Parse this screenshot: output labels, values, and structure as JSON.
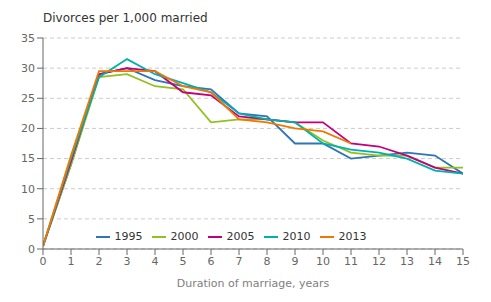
{
  "chart_data": {
    "type": "line",
    "title": "Divorces per 1,000 married",
    "xlabel": "Duration of marriage, years",
    "x": [
      0,
      1,
      2,
      3,
      4,
      5,
      6,
      7,
      8,
      9,
      10,
      11,
      12,
      13,
      14,
      15
    ],
    "series": [
      {
        "name": "1995",
        "color": "#2e75b6",
        "values": [
          0.5,
          14,
          29,
          30,
          28,
          27,
          26.5,
          22.5,
          22,
          17.5,
          17.5,
          15,
          15.5,
          16,
          15.5,
          12.5
        ]
      },
      {
        "name": "2000",
        "color": "#92c01f",
        "values": [
          0.5,
          14,
          28.5,
          29,
          27,
          26.5,
          21,
          21.5,
          21.5,
          21,
          18,
          16,
          15.5,
          15.5,
          13.5,
          13.5
        ]
      },
      {
        "name": "2005",
        "color": "#c2007a",
        "values": [
          0.5,
          14.5,
          29,
          30,
          29.5,
          26,
          25.5,
          22,
          21.5,
          21,
          21,
          17.5,
          17,
          15.5,
          13.5,
          12.5
        ]
      },
      {
        "name": "2010",
        "color": "#00b0b0",
        "values": [
          0.5,
          15,
          28.5,
          31.5,
          29,
          27.5,
          26,
          22.5,
          21.5,
          21,
          17.5,
          16.5,
          16,
          15,
          13,
          12.5
        ]
      },
      {
        "name": "2013",
        "color": "#f07800",
        "values": [
          0.5,
          15.5,
          29.5,
          29.5,
          29.5,
          27,
          26,
          21.5,
          21,
          20,
          19.5,
          17.5,
          null,
          null,
          null,
          null
        ]
      }
    ],
    "xlim": [
      0,
      15
    ],
    "ylim": [
      0,
      35
    ],
    "xticks": [
      0,
      1,
      2,
      3,
      4,
      5,
      6,
      7,
      8,
      9,
      10,
      11,
      12,
      13,
      14,
      15
    ],
    "yticks": [
      0,
      5,
      10,
      15,
      20,
      25,
      30,
      35
    ],
    "grid": "y",
    "legend": "lower left"
  }
}
